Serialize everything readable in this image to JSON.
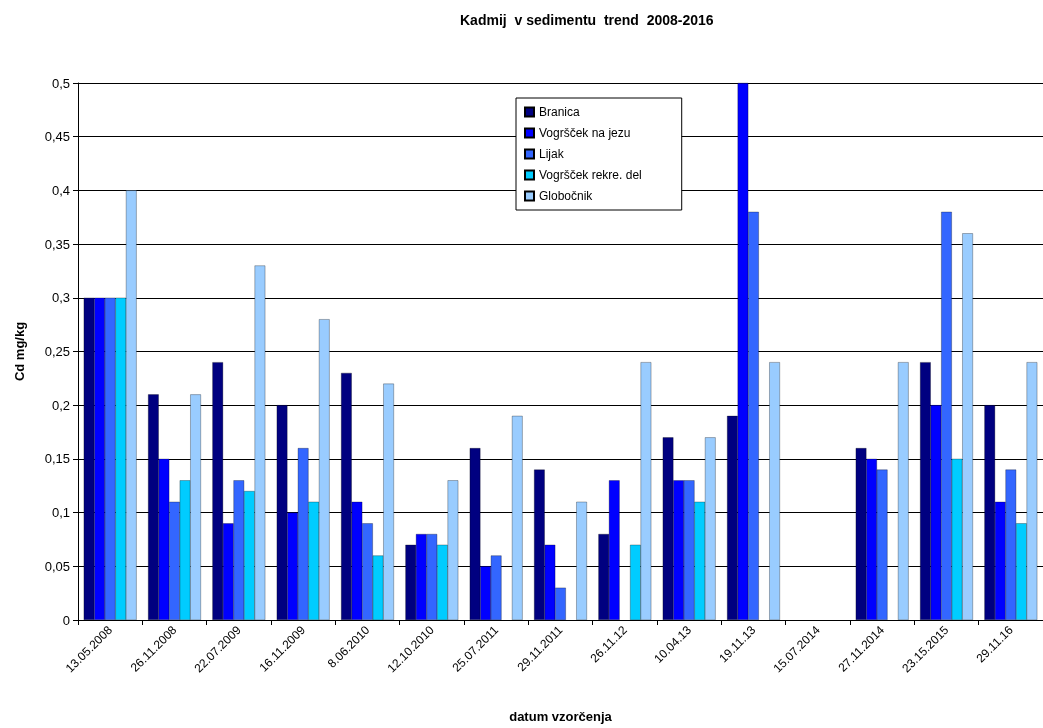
{
  "chart_data": {
    "type": "bar",
    "title": "Kadmij  v sedimentu  trend  2008-2016",
    "xlabel": "datum vzorčenja",
    "ylabel": "Cd mg/kg",
    "categories": [
      "13.05.2008",
      "26.11.2008",
      "22.07.2009",
      "16.11.2009",
      "8.06.2010",
      "12.10.2010",
      "25.07.2011",
      "29.11.2011",
      "26.11.12",
      "10.04.13",
      "19.11.13",
      "15.07.2014",
      "27.11.2014",
      "23.15.2015",
      "29.11.16"
    ],
    "series": [
      {
        "name": "Branica",
        "color": "#000080",
        "values": [
          0.3,
          0.21,
          0.24,
          0.2,
          0.23,
          0.07,
          0.16,
          0.14,
          0.08,
          0.17,
          0.19,
          null,
          0.16,
          0.24,
          0.2
        ]
      },
      {
        "name": "Vogršček na jezu",
        "color": "#0000ff",
        "values": [
          0.3,
          0.15,
          0.09,
          0.1,
          0.11,
          0.08,
          0.05,
          0.07,
          0.13,
          0.13,
          0.5,
          null,
          0.15,
          0.2,
          0.11
        ]
      },
      {
        "name": "Lijak",
        "color": "#3366ff",
        "values": [
          0.3,
          0.11,
          0.13,
          0.16,
          0.09,
          0.08,
          0.06,
          0.03,
          null,
          0.13,
          0.38,
          null,
          0.14,
          0.38,
          0.14
        ]
      },
      {
        "name": "Vogršček rekre. del",
        "color": "#00ccff",
        "values": [
          0.3,
          0.13,
          0.12,
          0.11,
          0.06,
          0.07,
          null,
          null,
          0.07,
          0.11,
          null,
          null,
          null,
          0.15,
          0.09
        ]
      },
      {
        "name": "Globočnik",
        "color": "#99ccff",
        "values": [
          0.4,
          0.21,
          0.33,
          0.28,
          0.22,
          0.13,
          0.19,
          0.11,
          0.24,
          0.17,
          0.24,
          null,
          0.24,
          0.36,
          0.24
        ]
      }
    ],
    "ylim": [
      0,
      0.5
    ],
    "yticks": [
      0,
      {
        "value": 0.05,
        "label": "0,05"
      },
      {
        "value": 0.1,
        "label": "0,1"
      },
      {
        "value": 0.15,
        "label": "0,15"
      },
      {
        "value": 0.2,
        "label": "0,2"
      },
      {
        "value": 0.25,
        "label": "0,25"
      },
      {
        "value": 0.3,
        "label": "0,3"
      },
      {
        "value": 0.35,
        "label": "0,35"
      },
      {
        "value": 0.4,
        "label": "0,4"
      },
      {
        "value": 0.45,
        "label": "0,45"
      },
      {
        "value": 0.5,
        "label": "0,5"
      }
    ],
    "grid": "y",
    "legend": "top"
  }
}
